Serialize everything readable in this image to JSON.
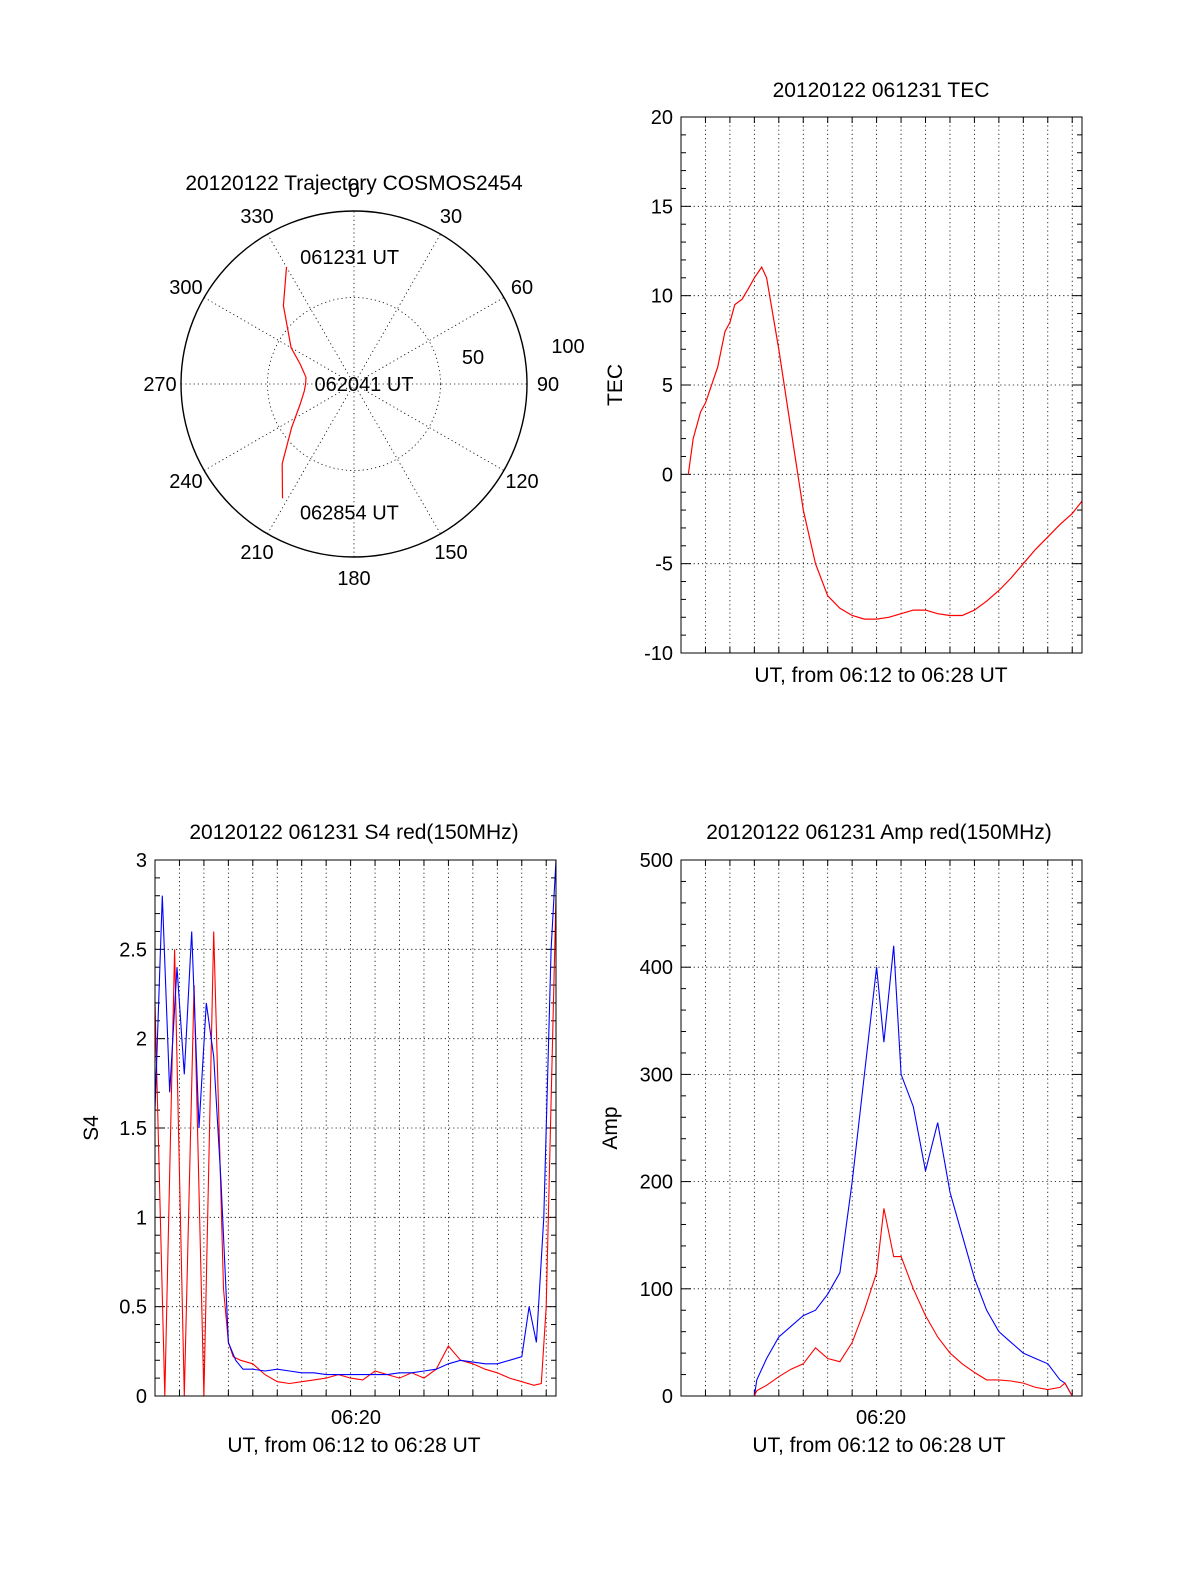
{
  "colors": {
    "red": "#ff0000",
    "blue": "#0000ff"
  },
  "chart_data": [
    {
      "type": "polar",
      "title": "20120122 Trajectory COSMOS2454",
      "angle_labels": [
        "0",
        "30",
        "60",
        "90",
        "120",
        "150",
        "180",
        "210",
        "240",
        "270",
        "300",
        "330"
      ],
      "radial_labels": [
        "50",
        "100"
      ],
      "track": {
        "color": "red",
        "points": [
          [
            330,
            78
          ],
          [
            318,
            61
          ],
          [
            300,
            42
          ],
          [
            290,
            33
          ],
          [
            278,
            28
          ],
          [
            270,
            28
          ],
          [
            262,
            29
          ],
          [
            250,
            33
          ],
          [
            235,
            44
          ],
          [
            222,
            62
          ],
          [
            212,
            78
          ]
        ],
        "labels": [
          {
            "text": "061231 UT",
            "angle": 352,
            "r": 74
          },
          {
            "text": "062041 UT",
            "angle": 270,
            "r": 2
          },
          {
            "text": "062854 UT",
            "angle": 188,
            "r": 75
          }
        ]
      }
    },
    {
      "type": "line",
      "title": "20120122 061231 TEC",
      "xlabel": "UT, from 06:12 to 06:28 UT",
      "ylabel": "TEC",
      "ylim": [
        -10,
        20
      ],
      "yticks": [
        "20",
        "15",
        "10",
        "5",
        "0",
        "-5",
        "-10"
      ],
      "xlim": [
        0,
        16.4
      ],
      "series": [
        {
          "color": "red",
          "x": [
            0.3,
            0.5,
            0.8,
            1.0,
            1.5,
            1.8,
            2.0,
            2.2,
            2.5,
            2.8,
            3.0,
            3.3,
            3.5,
            4.0,
            4.5,
            5.0,
            5.5,
            6.0,
            6.5,
            7.0,
            7.5,
            8.0,
            8.5,
            9.0,
            9.5,
            10.0,
            10.5,
            11.0,
            11.5,
            12.0,
            12.5,
            13.0,
            13.5,
            14.0,
            14.5,
            15.0,
            15.5,
            16.0,
            16.4
          ],
          "y": [
            0,
            2,
            3.5,
            4,
            6,
            8,
            8.5,
            9.5,
            9.8,
            10.5,
            11,
            11.6,
            11,
            7,
            2.5,
            -2,
            -5,
            -6.8,
            -7.5,
            -7.9,
            -8.1,
            -8.1,
            -8.0,
            -7.8,
            -7.6,
            -7.6,
            -7.8,
            -7.9,
            -7.9,
            -7.6,
            -7.1,
            -6.5,
            -5.8,
            -5.0,
            -4.2,
            -3.5,
            -2.8,
            -2.2,
            -1.5
          ]
        }
      ]
    },
    {
      "type": "line",
      "title": "20120122 061231 S4 red(150MHz)",
      "xlabel": "UT, from 06:12 to 06:28 UT",
      "ylabel": "S4",
      "ylim": [
        0,
        3
      ],
      "yticks": [
        "3",
        "2.5",
        "2",
        "1.5",
        "1",
        "0.5",
        "0"
      ],
      "xtick_label": "06:20",
      "xlim": [
        0,
        16.4
      ],
      "series": [
        {
          "color": "red",
          "x": [
            0,
            0.4,
            0.8,
            1.2,
            1.6,
            2.0,
            2.4,
            2.8,
            3.0,
            3.2,
            3.5,
            4.0,
            4.5,
            5.0,
            5.5,
            6.0,
            6.5,
            7.0,
            7.5,
            8.0,
            8.5,
            9.0,
            9.5,
            10.0,
            10.5,
            11.0,
            11.5,
            12.0,
            12.5,
            13.0,
            13.5,
            14.0,
            14.5,
            15.0,
            15.5,
            15.8,
            16.0,
            16.4
          ],
          "y": [
            2.2,
            0,
            2.5,
            0,
            2.3,
            0,
            2.6,
            0.6,
            0.3,
            0.22,
            0.2,
            0.18,
            0.12,
            0.08,
            0.07,
            0.08,
            0.09,
            0.1,
            0.12,
            0.1,
            0.09,
            0.14,
            0.12,
            0.1,
            0.13,
            0.1,
            0.15,
            0.28,
            0.2,
            0.18,
            0.15,
            0.13,
            0.1,
            0.08,
            0.06,
            0.07,
            0.5,
            2.8
          ]
        },
        {
          "color": "blue",
          "x": [
            0,
            0.3,
            0.6,
            0.9,
            1.2,
            1.5,
            1.8,
            2.1,
            2.4,
            2.7,
            3.0,
            3.3,
            3.6,
            4.0,
            4.5,
            5.0,
            5.5,
            6.0,
            6.5,
            7.0,
            7.5,
            8.0,
            8.5,
            9.0,
            9.5,
            10.0,
            10.5,
            11.0,
            11.5,
            12.0,
            12.5,
            13.0,
            13.5,
            14.0,
            14.5,
            15.0,
            15.3,
            15.6,
            15.9,
            16.2,
            16.4
          ],
          "y": [
            1.6,
            2.8,
            1.7,
            2.4,
            1.8,
            2.6,
            1.5,
            2.2,
            1.9,
            1.2,
            0.3,
            0.2,
            0.15,
            0.15,
            0.14,
            0.15,
            0.14,
            0.13,
            0.13,
            0.12,
            0.12,
            0.12,
            0.12,
            0.12,
            0.12,
            0.13,
            0.13,
            0.14,
            0.15,
            0.18,
            0.2,
            0.19,
            0.18,
            0.18,
            0.2,
            0.22,
            0.5,
            0.3,
            1.0,
            2.5,
            3.0
          ]
        }
      ]
    },
    {
      "type": "line",
      "title": "20120122 061231 Amp red(150MHz)",
      "xlabel": "UT, from 06:12 to 06:28 UT",
      "ylabel": "Amp",
      "ylim": [
        0,
        500
      ],
      "yticks": [
        "500",
        "400",
        "300",
        "200",
        "100",
        "0"
      ],
      "xtick_label": "06:20",
      "xlim": [
        0,
        16.4
      ],
      "series": [
        {
          "color": "red",
          "x": [
            0.5,
            1.0,
            2.0,
            3.0,
            3.1,
            3.5,
            4.0,
            4.5,
            5.0,
            5.5,
            6.0,
            6.5,
            7.0,
            7.5,
            8.0,
            8.3,
            8.7,
            9.0,
            9.5,
            10.0,
            10.5,
            11.0,
            11.5,
            12.0,
            12.5,
            13.0,
            13.5,
            14.0,
            14.5,
            15.0,
            15.5,
            15.7,
            16.0
          ],
          "y": [
            0,
            0,
            0,
            0,
            5,
            10,
            18,
            25,
            30,
            45,
            35,
            32,
            50,
            80,
            115,
            175,
            130,
            130,
            100,
            75,
            55,
            40,
            30,
            22,
            15,
            15,
            14,
            12,
            8,
            6,
            8,
            12,
            0
          ]
        },
        {
          "color": "blue",
          "x": [
            0.5,
            1.0,
            2.0,
            3.0,
            3.1,
            3.5,
            4.0,
            4.5,
            5.0,
            5.5,
            6.0,
            6.5,
            7.0,
            7.5,
            8.0,
            8.3,
            8.7,
            9.0,
            9.5,
            10.0,
            10.5,
            11.0,
            11.5,
            12.0,
            12.5,
            13.0,
            13.5,
            14.0,
            14.5,
            15.0,
            15.5,
            15.7,
            16.0
          ],
          "y": [
            0,
            0,
            0,
            0,
            15,
            35,
            55,
            65,
            75,
            80,
            95,
            115,
            200,
            300,
            400,
            330,
            420,
            300,
            270,
            210,
            255,
            190,
            150,
            110,
            80,
            60,
            50,
            40,
            35,
            30,
            15,
            12,
            0
          ]
        }
      ]
    }
  ]
}
